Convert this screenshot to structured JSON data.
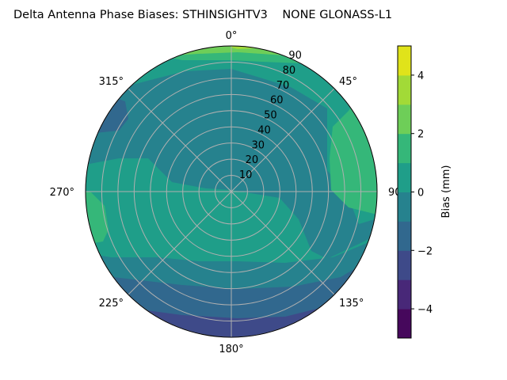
{
  "chart_data": {
    "type": "contour",
    "projection": "polar",
    "title": "Delta Antenna Phase Biases: STHINSIGHTV3    NONE GLONASS-L1",
    "angular_ticks": [
      "0°",
      "45°",
      "90°",
      "135°",
      "180°",
      "225°",
      "270°",
      "315°"
    ],
    "angular_tick_values": [
      0,
      45,
      90,
      135,
      180,
      225,
      270,
      315
    ],
    "radial_ticks": [
      "10",
      "20",
      "30",
      "40",
      "50",
      "60",
      "70",
      "80",
      "90"
    ],
    "radial_tick_values": [
      10,
      20,
      30,
      40,
      50,
      60,
      70,
      80,
      90
    ],
    "rlim": [
      0,
      90
    ],
    "theta_zero": "top",
    "theta_direction": "clockwise",
    "grid": true,
    "levels": [
      -5,
      -4,
      -3,
      -2,
      -1,
      0,
      1,
      2,
      3,
      4,
      5
    ],
    "colormap": "viridis",
    "level_colors": [
      "#46085c",
      "#482878",
      "#3e4a89",
      "#31688e",
      "#26828e",
      "#1f9e89",
      "#35b779",
      "#6ece58",
      "#a2da37",
      "#e0e31a"
    ],
    "colorbar": {
      "label": "Bias (mm)",
      "range": [
        -5,
        5
      ],
      "ticks": [
        "−4",
        "−2",
        "0",
        "2",
        "4"
      ],
      "tick_values": [
        -4,
        -2,
        0,
        2,
        4
      ],
      "placement": "right"
    }
  }
}
